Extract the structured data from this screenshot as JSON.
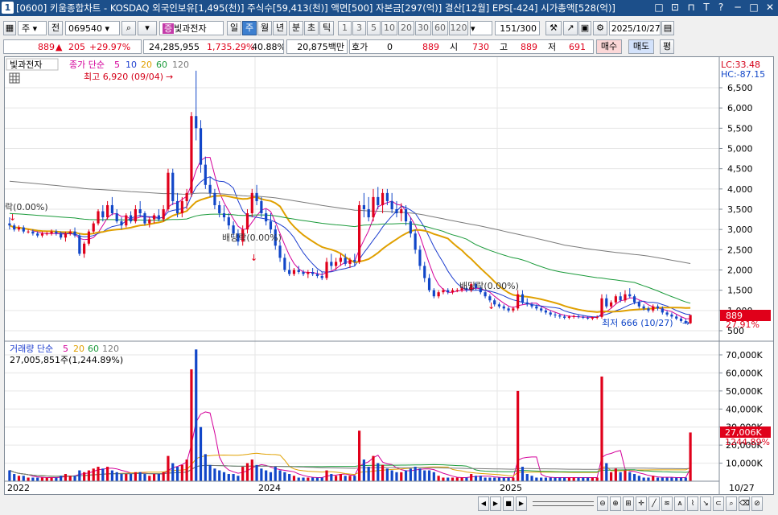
{
  "window": {
    "number": "1",
    "title": "[0600] 키움종합차트 - KOSDAQ 외국인보유[1,495(천)] 주식수[59,413(천)] 액면[500] 자본금[297(억)] 결산[12월] EPS[-424] 시가총액[528(억)]",
    "controls": [
      "□",
      "⊡",
      "⊓",
      "T",
      "?",
      "─",
      "□",
      "✕"
    ]
  },
  "toolbar1": {
    "period_select": "주",
    "prev_label": "전",
    "code": "069540",
    "stock_name": "빛과전자",
    "period_tabs": [
      "일",
      "주",
      "월",
      "년",
      "분",
      "초",
      "틱"
    ],
    "selected_tab": "주",
    "minute_options": [
      "1",
      "3",
      "5",
      "10",
      "20",
      "30",
      "60",
      "120"
    ],
    "count_value": "151",
    "count_total": "/300",
    "date_value": "2025/10/27"
  },
  "toolbar2": {
    "price": "889",
    "change": "205",
    "change_pct": "+29.97%",
    "volume": "24,285,955",
    "volume_pct": "1,735.29%",
    "turnover": "40.88%",
    "amount": "20,875백만",
    "hoga_label": "호가",
    "hoga_value": "0",
    "hoga_price": "889",
    "open_label": "시",
    "open_value": "730",
    "high_label": "고",
    "high_value": "889",
    "low_label": "저",
    "low_value": "691",
    "buy_label": "매수",
    "sell_label": "매도",
    "eval_label": "평"
  },
  "price_chart": {
    "stock_label": "빛과전자",
    "legend_prefix": "종가 단순",
    "ma_labels": [
      "5",
      "10",
      "20",
      "60",
      "120"
    ],
    "ma_colors": [
      "#d4009a",
      "#1f3fcf",
      "#e0a000",
      "#1a9a3a",
      "#7a7a7a"
    ],
    "high_annotation": "최고 6,920 (09/04)",
    "low_annotation": "최저 666 (10/27)",
    "event_labels": [
      "락(0.00%)",
      "배당락(0.00%)",
      "배당락(0.00%)"
    ],
    "lc_label": "LC:33.48",
    "hc_label": "HC:-87.15",
    "current_price_tag": "889",
    "current_pct_tag": "27.91%",
    "y_ticks": [
      "6,500",
      "6,000",
      "5,500",
      "5,000",
      "4,500",
      "4,000",
      "3,500",
      "3,000",
      "2,500",
      "2,000",
      "1,500",
      "1,000",
      "500"
    ]
  },
  "volume_chart": {
    "legend_prefix": "거래량 단순",
    "ma_labels": [
      "5",
      "20",
      "60",
      "120"
    ],
    "ma_colors": [
      "#d4009a",
      "#e0a000",
      "#1a9a3a",
      "#7a7a7a"
    ],
    "summary": "27,005,851주(1,244.89%)",
    "current_tag": "27,006K",
    "current_pct_tag": "1244.89%",
    "y_ticks": [
      "70,000K",
      "60,000K",
      "50,000K",
      "40,000K",
      "30,000K",
      "20,000K",
      "10,000K"
    ]
  },
  "x_axis": {
    "labels": [
      "2022",
      "2024",
      "2025"
    ],
    "right_label": "10/27"
  },
  "chart_data": {
    "type": "candlestick",
    "title": "",
    "period": "weekly",
    "ylim_price": [
      500,
      6920
    ],
    "ylim_volume": [
      0,
      75000000
    ],
    "candles": [
      [
        3150,
        3300,
        3000,
        3100,
        6
      ],
      [
        3100,
        3150,
        2950,
        3000,
        4
      ],
      [
        3000,
        3100,
        2950,
        3050,
        3
      ],
      [
        3050,
        3100,
        2900,
        2950,
        3
      ],
      [
        2950,
        3000,
        2900,
        2950,
        2
      ],
      [
        2950,
        3000,
        2850,
        2900,
        2
      ],
      [
        2900,
        2950,
        2800,
        2850,
        2
      ],
      [
        2850,
        2950,
        2800,
        2900,
        2
      ],
      [
        2900,
        2950,
        2850,
        2900,
        2
      ],
      [
        2900,
        3000,
        2850,
        2950,
        2
      ],
      [
        2950,
        3000,
        2850,
        2900,
        2
      ],
      [
        2900,
        2950,
        2750,
        2800,
        3
      ],
      [
        2800,
        2950,
        2700,
        2900,
        4
      ],
      [
        2900,
        3000,
        2850,
        2950,
        3
      ],
      [
        2950,
        3050,
        2800,
        2850,
        3
      ],
      [
        2850,
        2900,
        2350,
        2400,
        6
      ],
      [
        2400,
        2700,
        2300,
        2650,
        5
      ],
      [
        2650,
        3000,
        2600,
        2950,
        6
      ],
      [
        2950,
        3200,
        2900,
        3150,
        7
      ],
      [
        3150,
        3500,
        3100,
        3450,
        8
      ],
      [
        3450,
        3600,
        3200,
        3300,
        7
      ],
      [
        3300,
        3700,
        3250,
        3600,
        8
      ],
      [
        3600,
        3800,
        3350,
        3400,
        6
      ],
      [
        3400,
        3500,
        3150,
        3200,
        5
      ],
      [
        3200,
        3300,
        3000,
        3100,
        4
      ],
      [
        3100,
        3400,
        3050,
        3350,
        4
      ],
      [
        3350,
        3450,
        3150,
        3200,
        4
      ],
      [
        3200,
        3600,
        3150,
        3500,
        5
      ],
      [
        3500,
        3700,
        3300,
        3400,
        5
      ],
      [
        3400,
        3450,
        3100,
        3150,
        4
      ],
      [
        3150,
        3300,
        3050,
        3250,
        3
      ],
      [
        3250,
        3400,
        3150,
        3350,
        4
      ],
      [
        3350,
        3500,
        3200,
        3250,
        4
      ],
      [
        3250,
        3600,
        3200,
        3500,
        5
      ],
      [
        3500,
        4500,
        3450,
        4400,
        14
      ],
      [
        4400,
        4500,
        3600,
        3700,
        10
      ],
      [
        3700,
        3900,
        3300,
        3400,
        8
      ],
      [
        3400,
        3800,
        3300,
        3700,
        9
      ],
      [
        3700,
        4000,
        3500,
        3900,
        12
      ],
      [
        3900,
        5900,
        3800,
        5800,
        62
      ],
      [
        5800,
        6920,
        5200,
        5500,
        73
      ],
      [
        5500,
        5700,
        4400,
        4600,
        30
      ],
      [
        4600,
        4800,
        4000,
        4100,
        15
      ],
      [
        4100,
        4300,
        3800,
        3900,
        9
      ],
      [
        3900,
        4000,
        3500,
        3600,
        7
      ],
      [
        3600,
        3700,
        3300,
        3400,
        6
      ],
      [
        3400,
        3600,
        3200,
        3300,
        5
      ],
      [
        3300,
        3400,
        3000,
        3100,
        4
      ],
      [
        3100,
        3200,
        2800,
        2900,
        4
      ],
      [
        2900,
        3000,
        2600,
        2700,
        3
      ],
      [
        2700,
        3100,
        2600,
        3000,
        8
      ],
      [
        3000,
        3500,
        2900,
        3400,
        10
      ],
      [
        3400,
        4000,
        3300,
        3900,
        12
      ],
      [
        3900,
        4100,
        3600,
        3700,
        9
      ],
      [
        3700,
        3800,
        3300,
        3400,
        7
      ],
      [
        3400,
        3500,
        3100,
        3200,
        6
      ],
      [
        3200,
        3400,
        2900,
        3000,
        5
      ],
      [
        3000,
        3100,
        2500,
        2600,
        8
      ],
      [
        2600,
        2700,
        2200,
        2300,
        6
      ],
      [
        2300,
        2400,
        1950,
        2000,
        5
      ],
      [
        2000,
        2200,
        1850,
        1900,
        4
      ],
      [
        1900,
        2050,
        1850,
        2000,
        3
      ],
      [
        2000,
        2100,
        1900,
        1950,
        2
      ],
      [
        1950,
        2000,
        1850,
        1900,
        2
      ],
      [
        1900,
        2000,
        1800,
        1950,
        2
      ],
      [
        1950,
        2050,
        1850,
        1900,
        2
      ],
      [
        1900,
        2000,
        1800,
        1850,
        2
      ],
      [
        1850,
        1950,
        1750,
        1800,
        2
      ],
      [
        1800,
        2300,
        1750,
        2200,
        6
      ],
      [
        2200,
        2400,
        2000,
        2100,
        4
      ],
      [
        2100,
        2300,
        2000,
        2200,
        3
      ],
      [
        2200,
        2400,
        2100,
        2300,
        4
      ],
      [
        2300,
        2400,
        2100,
        2150,
        3
      ],
      [
        2150,
        2300,
        2050,
        2250,
        3
      ],
      [
        2250,
        2400,
        2100,
        2200,
        3
      ],
      [
        2200,
        3700,
        2150,
        3600,
        28
      ],
      [
        3600,
        3900,
        3300,
        3500,
        12
      ],
      [
        3500,
        3800,
        3200,
        3300,
        8
      ],
      [
        3300,
        4000,
        3200,
        3800,
        14
      ],
      [
        3800,
        4050,
        3500,
        3600,
        10
      ],
      [
        3600,
        4000,
        3400,
        3900,
        9
      ],
      [
        3900,
        4000,
        3600,
        3700,
        7
      ],
      [
        3700,
        3900,
        3400,
        3500,
        6
      ],
      [
        3500,
        3700,
        3300,
        3400,
        5
      ],
      [
        3400,
        3650,
        3200,
        3500,
        5
      ],
      [
        3500,
        3600,
        3100,
        3200,
        6
      ],
      [
        3200,
        3300,
        2800,
        2900,
        7
      ],
      [
        2900,
        3000,
        2400,
        2500,
        8
      ],
      [
        2500,
        2600,
        2000,
        2100,
        7
      ],
      [
        2100,
        2200,
        1700,
        1800,
        6
      ],
      [
        1800,
        1900,
        1450,
        1500,
        6
      ],
      [
        1500,
        1550,
        1300,
        1350,
        5
      ],
      [
        1350,
        1500,
        1300,
        1450,
        3
      ],
      [
        1450,
        1550,
        1400,
        1500,
        2
      ],
      [
        1500,
        1550,
        1400,
        1450,
        2
      ],
      [
        1450,
        1550,
        1400,
        1500,
        2
      ],
      [
        1500,
        1550,
        1450,
        1500,
        2
      ],
      [
        1500,
        1600,
        1450,
        1550,
        2
      ],
      [
        1550,
        1600,
        1450,
        1500,
        2
      ],
      [
        1500,
        1700,
        1450,
        1650,
        4
      ],
      [
        1650,
        1700,
        1500,
        1550,
        3
      ],
      [
        1550,
        1600,
        1400,
        1450,
        3
      ],
      [
        1450,
        1500,
        1300,
        1350,
        2
      ],
      [
        1350,
        1400,
        1200,
        1250,
        2
      ],
      [
        1250,
        1300,
        1100,
        1150,
        2
      ],
      [
        1150,
        1200,
        1050,
        1100,
        2
      ],
      [
        1100,
        1150,
        1000,
        1050,
        2
      ],
      [
        1050,
        1100,
        950,
        1000,
        2
      ],
      [
        1000,
        1100,
        950,
        1050,
        2
      ],
      [
        1050,
        1500,
        1000,
        1400,
        50
      ],
      [
        1400,
        1500,
        1150,
        1200,
        8
      ],
      [
        1200,
        1300,
        1100,
        1150,
        4
      ],
      [
        1150,
        1200,
        1050,
        1100,
        3
      ],
      [
        1100,
        1150,
        1000,
        1050,
        2
      ],
      [
        1050,
        1100,
        950,
        1000,
        2
      ],
      [
        1000,
        1050,
        900,
        950,
        2
      ],
      [
        950,
        1000,
        850,
        900,
        2
      ],
      [
        900,
        950,
        820,
        880,
        2
      ],
      [
        880,
        920,
        800,
        850,
        2
      ],
      [
        850,
        900,
        780,
        820,
        2
      ],
      [
        820,
        880,
        780,
        850,
        2
      ],
      [
        850,
        900,
        800,
        860,
        2
      ],
      [
        860,
        900,
        800,
        840,
        2
      ],
      [
        840,
        880,
        790,
        820,
        2
      ],
      [
        820,
        860,
        770,
        800,
        2
      ],
      [
        800,
        850,
        760,
        830,
        2
      ],
      [
        830,
        880,
        780,
        840,
        2
      ],
      [
        840,
        1400,
        800,
        1300,
        58
      ],
      [
        1300,
        1400,
        1050,
        1100,
        10
      ],
      [
        1100,
        1250,
        1050,
        1200,
        5
      ],
      [
        1200,
        1400,
        1150,
        1350,
        7
      ],
      [
        1350,
        1450,
        1200,
        1250,
        5
      ],
      [
        1250,
        1500,
        1200,
        1400,
        6
      ],
      [
        1400,
        1550,
        1300,
        1350,
        5
      ],
      [
        1350,
        1400,
        1150,
        1200,
        4
      ],
      [
        1200,
        1250,
        1050,
        1100,
        3
      ],
      [
        1100,
        1150,
        1000,
        1050,
        2
      ],
      [
        1050,
        1100,
        950,
        1000,
        2
      ],
      [
        1000,
        1150,
        950,
        1100,
        3
      ],
      [
        1100,
        1150,
        1000,
        1050,
        2
      ],
      [
        1050,
        1100,
        900,
        950,
        2
      ],
      [
        950,
        1000,
        850,
        900,
        2
      ],
      [
        900,
        950,
        800,
        850,
        2
      ],
      [
        850,
        900,
        760,
        800,
        2
      ],
      [
        800,
        850,
        700,
        740,
        2
      ],
      [
        740,
        800,
        666,
        700,
        2
      ],
      [
        684,
        889,
        666,
        889,
        27
      ]
    ],
    "note_units": "price in KRW; last field volume in millions of shares"
  }
}
